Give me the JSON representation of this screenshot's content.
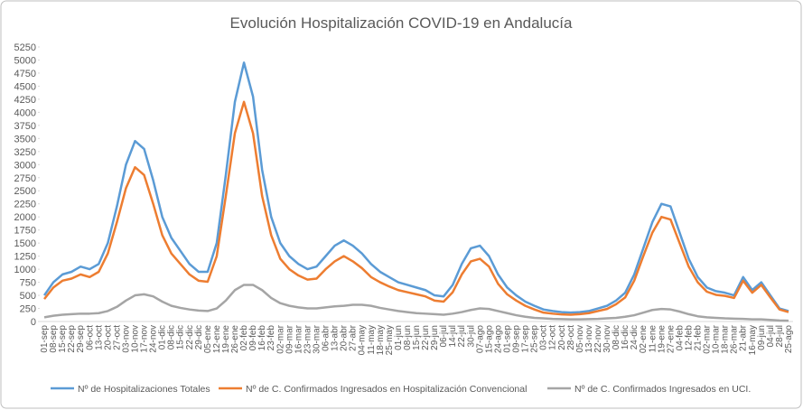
{
  "chart_data": {
    "type": "line",
    "title": "Evolución Hospitalización COVID-19 en Andalucía",
    "categories": [
      "01-sep",
      "08-sep",
      "15-sep",
      "22-sep",
      "29-sep",
      "06-oct",
      "13-oct",
      "20-oct",
      "27-oct",
      "03-nov",
      "10-nov",
      "17-nov",
      "24-nov",
      "01-dic",
      "08-dic",
      "15-dic",
      "22-dic",
      "29-dic",
      "05-ene",
      "12-ene",
      "19-ene",
      "26-ene",
      "02-feb",
      "09-feb",
      "16-feb",
      "23-feb",
      "02-mar",
      "09-mar",
      "16-mar",
      "23-mar",
      "30-mar",
      "06-abr",
      "13-abr",
      "20-abr",
      "27-abr",
      "04-may",
      "11-may",
      "18-may",
      "25-may",
      "01-jun",
      "08-jun",
      "15-jun",
      "22-jun",
      "29-jun",
      "06-jul",
      "14-jul",
      "22-jul",
      "30-jul",
      "07-ago",
      "15-ago",
      "24-ago",
      "01-sep",
      "09-sep",
      "17-sep",
      "25-sep",
      "03-oct",
      "12-oct",
      "20-oct",
      "28-oct",
      "05-nov",
      "13-nov",
      "22-nov",
      "30-nov",
      "08-dic",
      "16-dic",
      "24-dic",
      "02-ene",
      "11-ene",
      "19-ene",
      "27-ene",
      "04-feb",
      "12-feb",
      "21-feb",
      "02-mar",
      "10-mar",
      "18-mar",
      "26-mar",
      "21-abr",
      "16-may",
      "09-jun",
      "04-jul",
      "28-jul",
      "25-ago"
    ],
    "series": [
      {
        "name": "Nº de Hospitalizaciones Totales",
        "color": "#5b9bd5",
        "values": [
          500,
          750,
          900,
          950,
          1050,
          1000,
          1100,
          1500,
          2200,
          3000,
          3450,
          3300,
          2700,
          2000,
          1600,
          1350,
          1100,
          950,
          950,
          1500,
          2800,
          4200,
          4950,
          4300,
          2900,
          2000,
          1500,
          1250,
          1100,
          1000,
          1050,
          1250,
          1450,
          1550,
          1450,
          1300,
          1100,
          950,
          850,
          750,
          700,
          650,
          600,
          500,
          480,
          700,
          1100,
          1400,
          1450,
          1250,
          900,
          650,
          500,
          380,
          300,
          230,
          200,
          180,
          170,
          180,
          200,
          250,
          300,
          400,
          550,
          900,
          1400,
          1900,
          2250,
          2200,
          1700,
          1200,
          850,
          650,
          580,
          550,
          500,
          850,
          600,
          750,
          500,
          250,
          200
        ]
      },
      {
        "name": "Nº de C. Confirmados Ingresados en Hospitalización Convencional",
        "color": "#ed7d31",
        "values": [
          430,
          650,
          780,
          820,
          900,
          850,
          950,
          1300,
          1900,
          2550,
          2950,
          2800,
          2250,
          1650,
          1300,
          1100,
          900,
          780,
          760,
          1250,
          2400,
          3600,
          4200,
          3600,
          2400,
          1650,
          1200,
          1000,
          880,
          800,
          820,
          1000,
          1150,
          1250,
          1150,
          1020,
          850,
          750,
          670,
          600,
          560,
          520,
          480,
          400,
          380,
          560,
          900,
          1150,
          1200,
          1050,
          720,
          520,
          400,
          300,
          230,
          170,
          150,
          135,
          130,
          140,
          160,
          200,
          240,
          330,
          460,
          780,
          1250,
          1700,
          2000,
          1950,
          1500,
          1050,
          750,
          570,
          510,
          490,
          450,
          780,
          550,
          700,
          460,
          230,
          180
        ]
      },
      {
        "name": "Nº de C. Confirmados Ingresados en UCI.",
        "color": "#a5a5a5",
        "values": [
          80,
          110,
          130,
          140,
          150,
          150,
          160,
          200,
          280,
          400,
          500,
          520,
          480,
          380,
          300,
          260,
          230,
          210,
          200,
          250,
          400,
          600,
          700,
          700,
          600,
          450,
          350,
          300,
          270,
          250,
          250,
          270,
          290,
          300,
          320,
          320,
          300,
          260,
          230,
          200,
          180,
          160,
          150,
          140,
          130,
          150,
          180,
          220,
          250,
          240,
          200,
          160,
          120,
          90,
          70,
          60,
          50,
          45,
          40,
          40,
          45,
          50,
          60,
          70,
          90,
          120,
          170,
          220,
          240,
          230,
          190,
          140,
          100,
          80,
          70,
          60,
          55,
          50,
          40,
          40,
          30,
          20,
          15
        ]
      }
    ],
    "ylim": [
      0,
      5250
    ],
    "yticks": [
      0,
      250,
      500,
      750,
      1000,
      1250,
      1500,
      1750,
      2000,
      2250,
      2500,
      2750,
      3000,
      3250,
      3500,
      3750,
      4000,
      4250,
      4500,
      4750,
      5000,
      5250
    ],
    "grid": false,
    "legend": "bottom"
  }
}
